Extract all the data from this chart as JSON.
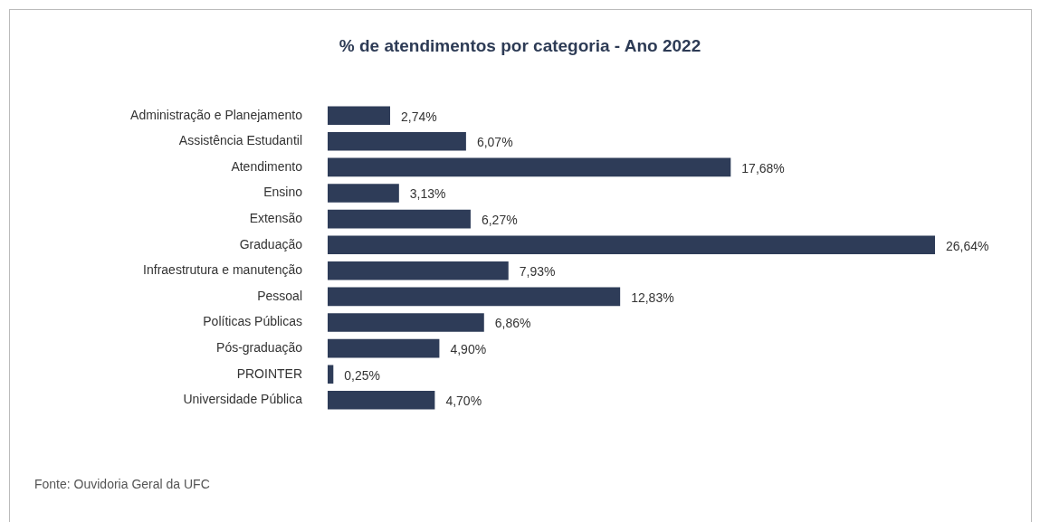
{
  "chart_data": {
    "type": "bar",
    "orientation": "horizontal",
    "title": "% de atendimentos por categoria - Ano 2022",
    "categories": [
      "Administração e Planejamento",
      "Assistência Estudantil",
      "Atendimento",
      "Ensino",
      "Extensão",
      "Graduação",
      "Infraestrutura e manutenção",
      "Pessoal",
      "Políticas Públicas",
      "Pós-graduação",
      "PROINTER",
      "Universidade Pública"
    ],
    "values": [
      2.74,
      6.07,
      17.68,
      3.13,
      6.27,
      26.64,
      7.93,
      12.83,
      6.86,
      4.9,
      0.25,
      4.7
    ],
    "value_labels": [
      "2,74%",
      "6,07%",
      "17,68%",
      "3,13%",
      "6,27%",
      "26,64%",
      "7,93%",
      "12,83%",
      "6,86%",
      "4,90%",
      "0,25%",
      "4,70%"
    ],
    "color": "#2e3c58",
    "legend": false,
    "annotations": [
      "Fonte: Ouvidoria Geral da UFC"
    ]
  }
}
